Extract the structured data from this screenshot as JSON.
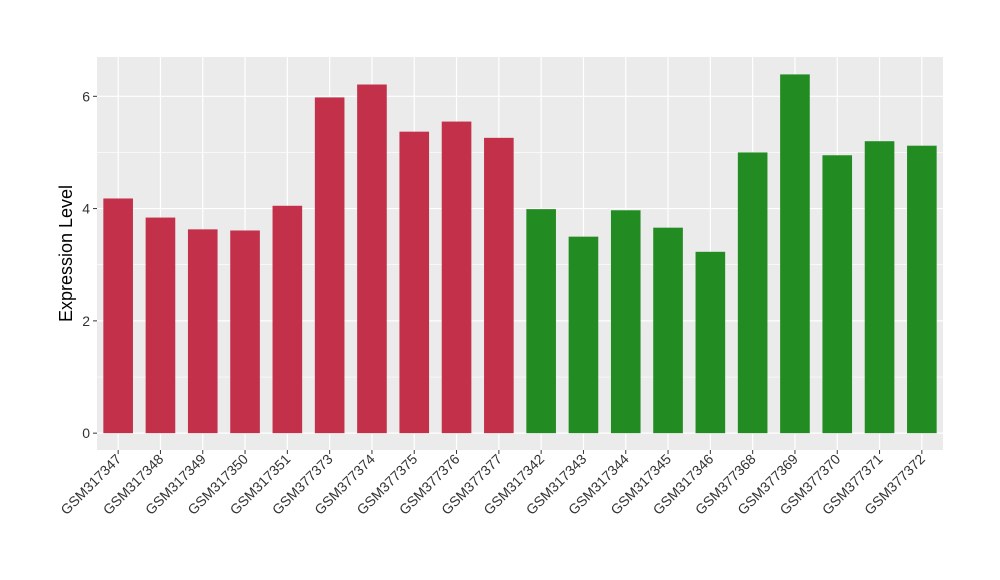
{
  "chart_data": {
    "type": "bar",
    "ylabel": "Expression Level",
    "xlabel": "",
    "ylim": [
      -0.3,
      6.7
    ],
    "yticks": [
      0,
      2,
      4,
      6
    ],
    "grid": true,
    "colors": {
      "group_a": "#C3304A",
      "group_b": "#228B22",
      "panel": "#EBEBEB",
      "grid": "#FFFFFF"
    },
    "categories": [
      "GSM317347",
      "GSM317348",
      "GSM317349",
      "GSM317350",
      "GSM317351",
      "GSM377373",
      "GSM377374",
      "GSM377375",
      "GSM377376",
      "GSM377377",
      "GSM317342",
      "GSM317343",
      "GSM317344",
      "GSM317345",
      "GSM317346",
      "GSM377368",
      "GSM377369",
      "GSM377370",
      "GSM377371",
      "GSM377372"
    ],
    "values": [
      4.18,
      3.84,
      3.63,
      3.61,
      4.05,
      5.98,
      6.21,
      5.37,
      5.55,
      5.26,
      3.99,
      3.5,
      3.97,
      3.66,
      3.23,
      5.0,
      6.39,
      4.95,
      5.2,
      5.12
    ],
    "bar_groups": [
      "group_a",
      "group_a",
      "group_a",
      "group_a",
      "group_a",
      "group_a",
      "group_a",
      "group_a",
      "group_a",
      "group_a",
      "group_b",
      "group_b",
      "group_b",
      "group_b",
      "group_b",
      "group_b",
      "group_b",
      "group_b",
      "group_b",
      "group_b"
    ]
  }
}
